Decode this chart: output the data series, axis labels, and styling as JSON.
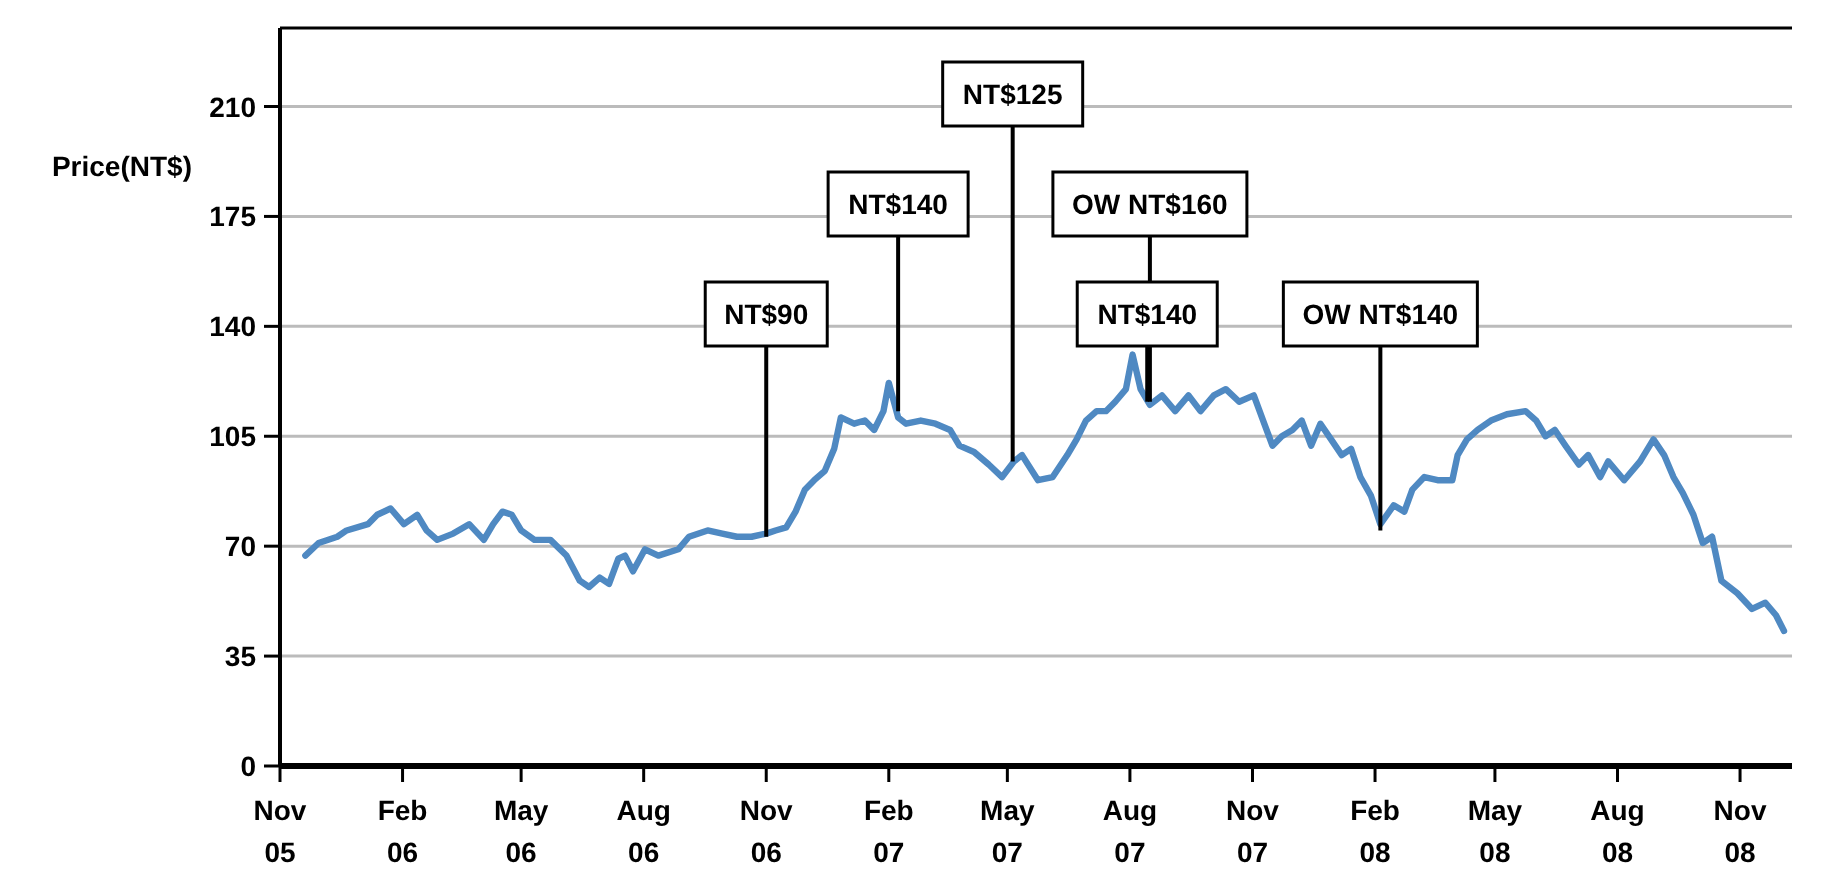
{
  "chart_data": {
    "type": "line",
    "ylabel": "Price(NT$)",
    "xlim": [
      "2005-11-01",
      "2008-12-10"
    ],
    "xticks": [
      {
        "value": "2005-11-01",
        "label": "Nov\n05"
      },
      {
        "value": "2006-02-01",
        "label": "Feb\n06"
      },
      {
        "value": "2006-05-01",
        "label": "May\n06"
      },
      {
        "value": "2006-08-01",
        "label": "Aug\n06"
      },
      {
        "value": "2006-11-01",
        "label": "Nov\n06"
      },
      {
        "value": "2007-02-01",
        "label": "Feb\n07"
      },
      {
        "value": "2007-05-01",
        "label": "May\n07"
      },
      {
        "value": "2007-08-01",
        "label": "Aug\n07"
      },
      {
        "value": "2007-11-01",
        "label": "Nov\n07"
      },
      {
        "value": "2008-02-01",
        "label": "Feb\n08"
      },
      {
        "value": "2008-05-01",
        "label": "May\n08"
      },
      {
        "value": "2008-08-01",
        "label": "Aug\n08"
      },
      {
        "value": "2008-11-01",
        "label": "Nov\n08"
      }
    ],
    "ylim": [
      0,
      235
    ],
    "yticks": [
      0,
      35,
      70,
      105,
      140,
      175,
      210
    ],
    "grid": "y",
    "line_style": "solid",
    "marker": "none",
    "x": [
      "2005-11-20",
      "2005-11-30",
      "2005-12-14",
      "2005-12-21",
      "2006-01-06",
      "2006-01-13",
      "2006-01-23",
      "2006-02-02",
      "2006-02-12",
      "2006-02-19",
      "2006-02-27",
      "2006-03-11",
      "2006-03-23",
      "2006-04-03",
      "2006-04-10",
      "2006-04-17",
      "2006-04-24",
      "2006-05-01",
      "2006-05-11",
      "2006-05-23",
      "2006-06-04",
      "2006-06-14",
      "2006-06-21",
      "2006-06-29",
      "2006-07-06",
      "2006-07-13",
      "2006-07-18",
      "2006-07-24",
      "2006-08-02",
      "2006-08-12",
      "2006-08-27",
      "2006-09-04",
      "2006-09-18",
      "2006-09-29",
      "2006-10-10",
      "2006-10-21",
      "2006-11-01",
      "2006-11-08",
      "2006-11-16",
      "2006-11-23",
      "2006-11-30",
      "2006-12-07",
      "2006-12-15",
      "2006-12-22",
      "2006-12-27",
      "2007-01-06",
      "2007-01-14",
      "2007-01-21",
      "2007-01-28",
      "2007-02-01",
      "2007-02-08",
      "2007-02-14",
      "2007-02-25",
      "2007-03-08",
      "2007-03-19",
      "2007-03-26",
      "2007-04-06",
      "2007-04-17",
      "2007-04-27",
      "2007-05-06",
      "2007-05-12",
      "2007-05-24",
      "2007-06-04",
      "2007-06-15",
      "2007-06-22",
      "2007-06-29",
      "2007-07-07",
      "2007-07-14",
      "2007-07-21",
      "2007-07-29",
      "2007-08-03",
      "2007-08-09",
      "2007-08-16",
      "2007-08-25",
      "2007-09-04",
      "2007-09-14",
      "2007-09-23",
      "2007-10-03",
      "2007-10-12",
      "2007-10-22",
      "2007-11-02",
      "2007-11-09",
      "2007-11-16",
      "2007-11-23",
      "2007-12-01",
      "2007-12-08",
      "2007-12-15",
      "2007-12-22",
      "2007-12-30",
      "2008-01-07",
      "2008-01-14",
      "2008-01-21",
      "2008-01-29",
      "2008-02-05",
      "2008-02-15",
      "2008-02-23",
      "2008-02-29",
      "2008-03-09",
      "2008-03-19",
      "2008-03-30",
      "2008-04-03",
      "2008-04-10",
      "2008-04-18",
      "2008-04-28",
      "2008-05-10",
      "2008-05-24",
      "2008-06-01",
      "2008-06-08",
      "2008-06-15",
      "2008-06-23",
      "2008-07-03",
      "2008-07-10",
      "2008-07-19",
      "2008-07-25",
      "2008-08-06",
      "2008-08-18",
      "2008-08-28",
      "2008-09-05",
      "2008-09-12",
      "2008-09-19",
      "2008-09-27",
      "2008-10-04",
      "2008-10-11",
      "2008-10-18",
      "2008-10-30",
      "2008-11-10",
      "2008-11-20",
      "2008-11-28",
      "2008-12-04"
    ],
    "series": [
      {
        "color": "#4f89c2",
        "values": [
          67,
          71,
          73,
          75,
          77,
          80,
          82,
          77,
          80,
          75,
          72,
          74,
          77,
          72,
          77,
          81,
          80,
          75,
          72,
          72,
          67,
          59,
          57,
          60,
          58,
          66,
          67,
          62,
          69,
          67,
          69,
          73,
          75,
          74,
          73,
          73,
          74,
          75,
          76,
          81,
          88,
          91,
          94,
          101,
          111,
          109,
          110,
          107,
          113,
          122,
          111,
          109,
          110,
          109,
          107,
          102,
          100,
          96,
          92,
          97,
          99,
          91,
          92,
          99,
          104,
          110,
          113,
          113,
          116,
          120,
          131,
          120,
          115,
          118,
          113,
          118,
          113,
          118,
          120,
          116,
          118,
          110,
          102,
          105,
          107,
          110,
          102,
          109,
          104,
          99,
          101,
          92,
          86,
          77,
          83,
          81,
          88,
          92,
          91,
          91,
          99,
          104,
          107,
          110,
          112,
          113,
          110,
          105,
          107,
          102,
          96,
          99,
          92,
          97,
          91,
          97,
          104,
          99,
          92,
          87,
          80,
          71,
          73,
          59,
          55,
          50,
          52,
          48,
          43
        ]
      }
    ],
    "annotations": [
      {
        "text": "NT$90",
        "x": "2006-11-01",
        "y": 73
      },
      {
        "text": "NT$140",
        "x": "2007-02-08",
        "y": 113
      },
      {
        "text": "NT$125",
        "x": "2007-05-05",
        "y": 97
      },
      {
        "text": "OW NT$160",
        "x": "2007-08-16",
        "y": 116
      },
      {
        "text": "NT$140",
        "x": "2007-08-14",
        "y": 116
      },
      {
        "text": "OW NT$140",
        "x": "2008-02-05",
        "y": 75
      }
    ]
  }
}
